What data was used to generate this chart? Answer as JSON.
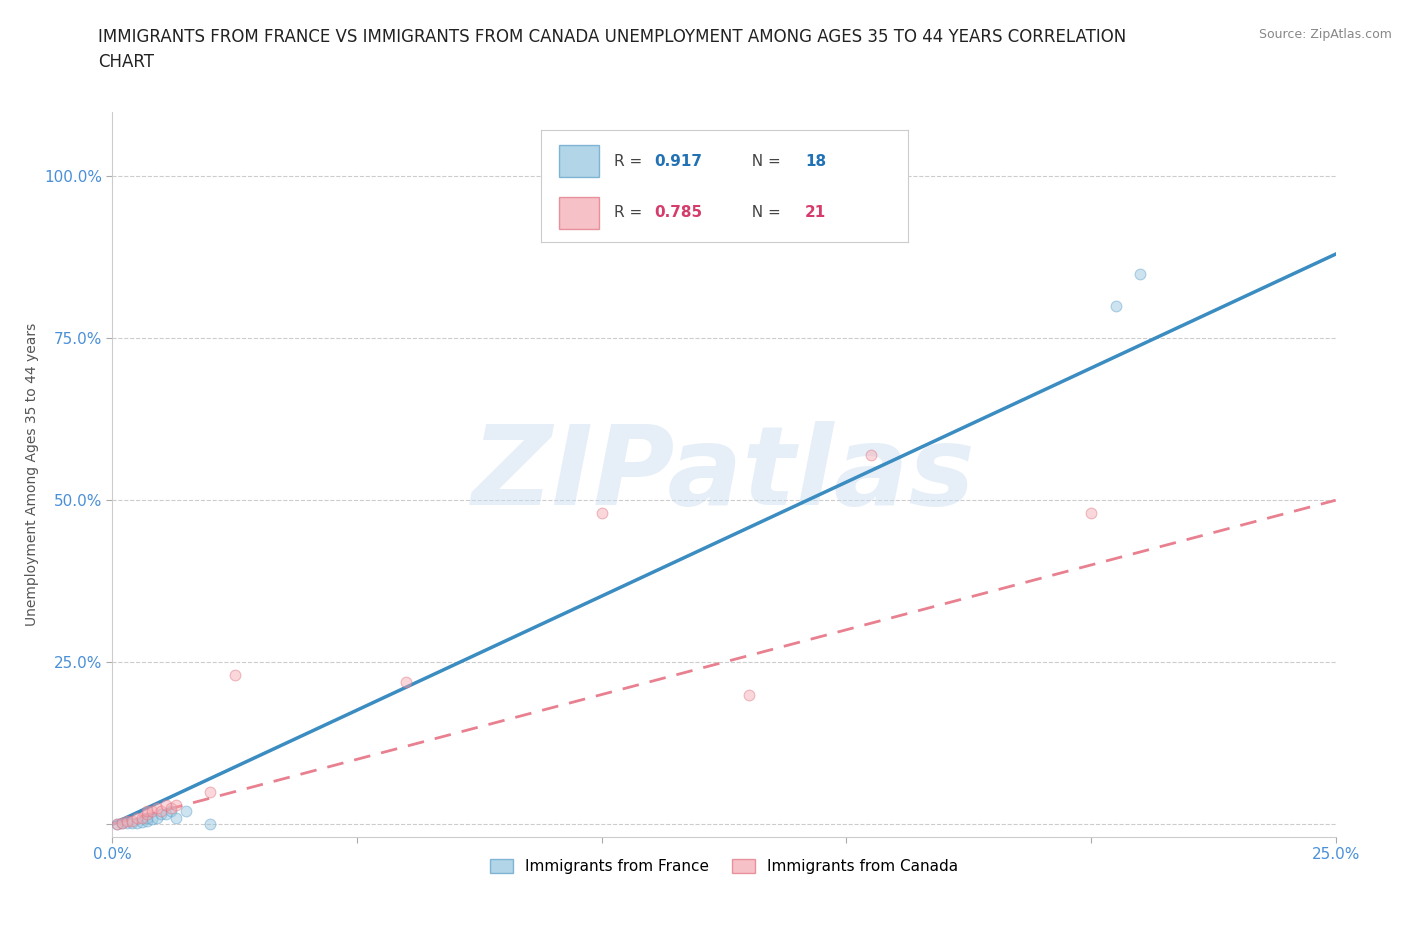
{
  "title": "IMMIGRANTS FROM FRANCE VS IMMIGRANTS FROM CANADA UNEMPLOYMENT AMONG AGES 35 TO 44 YEARS CORRELATION\nCHART",
  "source": "Source: ZipAtlas.com",
  "ylabel": "Unemployment Among Ages 35 to 44 years",
  "xlim": [
    0.0,
    0.25
  ],
  "ylim": [
    -0.02,
    1.1
  ],
  "yticks": [
    0.0,
    0.25,
    0.5,
    0.75,
    1.0
  ],
  "ytick_labels": [
    "",
    "25.0%",
    "50.0%",
    "75.0%",
    "100.0%"
  ],
  "xticks": [
    0.0,
    0.05,
    0.1,
    0.15,
    0.2,
    0.25
  ],
  "xtick_labels": [
    "0.0%",
    "",
    "",
    "",
    "",
    "25.0%"
  ],
  "france_color": "#92c5de",
  "canada_color": "#f4a8b0",
  "france_edge_color": "#5a9dc8",
  "canada_edge_color": "#e07080",
  "france_line_color": "#3a8cc1",
  "canada_line_color": "#e88090",
  "france_R": 0.917,
  "france_N": 18,
  "canada_R": 0.785,
  "canada_N": 21,
  "france_line_x": [
    0.0,
    0.25
  ],
  "france_line_y": [
    0.0,
    0.88
  ],
  "canada_line_x": [
    0.0,
    0.25
  ],
  "canada_line_y": [
    0.0,
    0.5
  ],
  "france_scatter_x": [
    0.001,
    0.002,
    0.003,
    0.004,
    0.005,
    0.006,
    0.007,
    0.007,
    0.008,
    0.009,
    0.01,
    0.011,
    0.012,
    0.013,
    0.015,
    0.02,
    0.21,
    0.205
  ],
  "france_scatter_y": [
    0.0,
    0.001,
    0.001,
    0.002,
    0.002,
    0.003,
    0.005,
    0.01,
    0.008,
    0.01,
    0.015,
    0.015,
    0.02,
    0.01,
    0.02,
    0.0,
    0.85,
    0.8
  ],
  "canada_scatter_x": [
    0.001,
    0.002,
    0.003,
    0.004,
    0.005,
    0.006,
    0.007,
    0.007,
    0.008,
    0.009,
    0.01,
    0.011,
    0.012,
    0.013,
    0.02,
    0.025,
    0.06,
    0.1,
    0.13,
    0.155,
    0.2
  ],
  "canada_scatter_y": [
    0.0,
    0.001,
    0.005,
    0.005,
    0.01,
    0.01,
    0.015,
    0.02,
    0.02,
    0.025,
    0.02,
    0.03,
    0.025,
    0.03,
    0.05,
    0.23,
    0.22,
    0.48,
    0.2,
    0.57,
    0.48
  ],
  "watermark": "ZIPatlas",
  "background_color": "#ffffff",
  "grid_color": "#cccccc",
  "title_fontsize": 12,
  "source_fontsize": 9,
  "axis_label_fontsize": 10,
  "tick_fontsize": 11,
  "scatter_size": 60,
  "scatter_alpha": 0.45,
  "legend_france_R_color": "#2171b5",
  "legend_canada_R_color": "#d63c6b"
}
